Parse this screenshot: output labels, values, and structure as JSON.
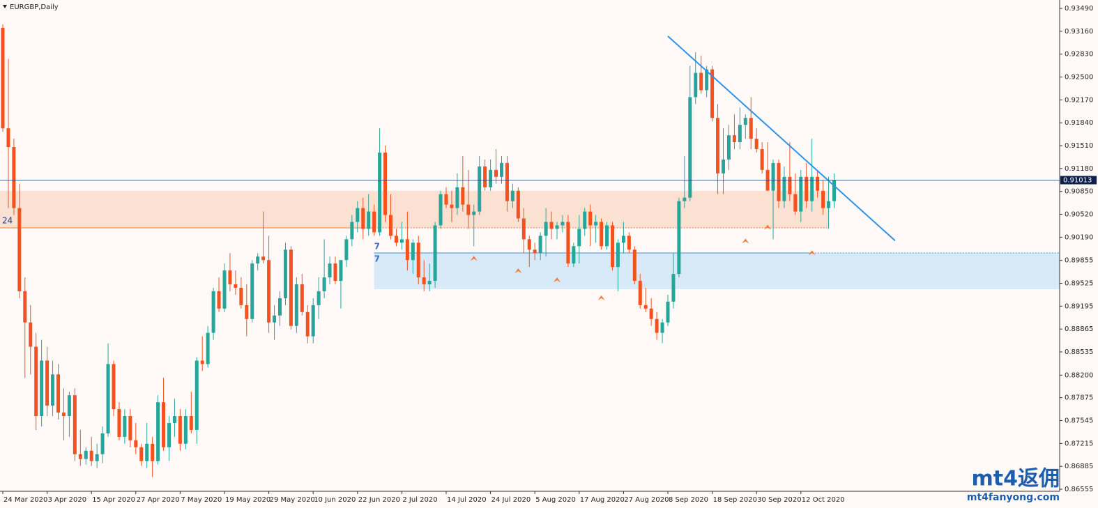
{
  "chart_data": {
    "type": "candlestick",
    "title": "EURGBP,Daily",
    "up_color": "#26a69a",
    "down_color": "#f4511e",
    "categories": [
      "24 Mar 2020",
      null,
      null,
      null,
      null,
      null,
      null,
      null,
      "3 Apr 2020",
      null,
      null,
      null,
      null,
      null,
      null,
      null,
      "15 Apr 2020",
      null,
      null,
      null,
      null,
      null,
      null,
      null,
      "27 Apr 2020",
      null,
      null,
      null,
      null,
      null,
      null,
      null,
      "7 May 2020",
      null,
      null,
      null,
      null,
      null,
      null,
      null,
      "19 May 2020",
      null,
      null,
      null,
      null,
      null,
      null,
      null,
      "29 May 2020",
      null,
      null,
      null,
      null,
      null,
      null,
      null,
      "10 Jun 2020",
      null,
      null,
      null,
      null,
      null,
      null,
      null,
      "22 Jun 2020",
      null,
      null,
      null,
      null,
      null,
      null,
      null,
      "2 Jul 2020",
      null,
      null,
      null,
      null,
      null,
      null,
      null,
      "14 Jul 2020",
      null,
      null,
      null,
      null,
      null,
      null,
      null,
      "24 Jul 2020",
      null,
      null,
      null,
      null,
      null,
      null,
      null,
      "5 Aug 2020",
      null,
      null,
      null,
      null,
      null,
      null,
      null,
      "17 Aug 2020",
      null,
      null,
      null,
      null,
      null,
      null,
      null,
      "27 Aug 2020",
      null,
      null,
      null,
      null,
      null,
      null,
      null,
      "8 Sep 2020",
      null,
      null,
      null,
      null,
      null,
      null,
      null,
      "18 Sep 2020",
      null,
      null,
      null,
      null,
      null,
      null,
      null,
      "30 Sep 2020",
      null,
      null,
      null,
      null,
      null,
      null,
      null,
      "12 Oct 2020",
      null,
      null,
      null,
      null,
      null,
      null
    ],
    "open": [
      0.9321,
      0.9176,
      0.9149,
      0.9061,
      0.8941,
      0.8896,
      0.8861,
      0.8761,
      0.8841,
      0.8776,
      0.8821,
      0.8766,
      0.8761,
      0.8791,
      0.8706,
      0.8699,
      0.8711,
      0.8696,
      0.8706,
      0.8736,
      0.8836,
      0.8771,
      0.8731,
      0.8761,
      0.8726,
      0.8716,
      0.8696,
      0.8721,
      0.8696,
      0.8781,
      0.8716,
      0.8751,
      0.8761,
      0.8721,
      0.8761,
      0.8741,
      0.8841,
      0.8836,
      0.8881,
      0.8941,
      0.8916,
      0.8971,
      0.8951,
      0.8946,
      0.8921,
      0.8901,
      0.8981,
      0.8991,
      0.8986,
      0.8896,
      0.8906,
      0.8931,
      0.9001,
      0.8891,
      0.8951,
      0.8911,
      0.8876,
      0.8921,
      0.8941,
      0.8961,
      0.8981,
      0.8956,
      0.8986,
      0.9016,
      0.9041,
      0.9061,
      0.9031,
      0.9056,
      0.9026,
      0.9141,
      0.9051,
      0.9021,
      0.9011,
      0.9016,
      0.8986,
      0.9011,
      0.8961,
      0.8951,
      0.8956,
      0.9036,
      0.9081,
      0.9066,
      0.9061,
      0.9091,
      0.9066,
      0.9051,
      0.9056,
      0.9121,
      0.9091,
      0.9116,
      0.9106,
      0.9126,
      0.9071,
      0.9086,
      0.9046,
      0.9016,
      0.9001,
      0.8996,
      0.9021,
      0.9041,
      0.9031,
      0.9036,
      0.9041,
      0.8981,
      0.9006,
      0.9031,
      0.9056,
      0.9036,
      0.9041,
      0.9006,
      0.9036,
      0.8976,
      0.9011,
      0.9021,
      0.9001,
      0.8956,
      0.8921,
      0.8916,
      0.8901,
      0.8881,
      0.8896,
      0.8926,
      0.8966,
      0.9071,
      0.9076,
      0.9221,
      0.9256,
      0.9231,
      0.9261,
      0.9191,
      0.9111,
      0.9131,
      0.9166,
      0.9156,
      0.9181,
      0.9191,
      0.9161,
      0.9146,
      0.9116,
      0.9086,
      0.9126,
      0.9071,
      0.9106,
      0.9081,
      0.9056,
      0.9106,
      0.9071,
      0.9106,
      0.9086,
      0.9061,
      0.9071
    ],
    "high": [
      0.9326,
      0.9276,
      0.9161,
      0.9096,
      0.8961,
      0.8921,
      0.8881,
      0.8871,
      0.8861,
      0.8841,
      0.8836,
      0.8801,
      0.8796,
      0.8801,
      0.8741,
      0.8716,
      0.8731,
      0.8721,
      0.8746,
      0.8866,
      0.8841,
      0.8781,
      0.8771,
      0.8771,
      0.8751,
      0.8721,
      0.8751,
      0.8731,
      0.8791,
      0.8816,
      0.8761,
      0.8786,
      0.8771,
      0.8771,
      0.8796,
      0.8846,
      0.8876,
      0.8891,
      0.8946,
      0.8961,
      0.8981,
      0.8996,
      0.8971,
      0.8961,
      0.8951,
      0.8986,
      0.8996,
      0.9056,
      0.9021,
      0.8921,
      0.8941,
      0.9011,
      0.9006,
      0.8961,
      0.8966,
      0.8921,
      0.8931,
      0.8961,
      0.9016,
      0.8991,
      0.8991,
      0.8986,
      0.9021,
      0.9051,
      0.9071,
      0.9076,
      0.9081,
      0.9066,
      0.9176,
      0.9151,
      0.9081,
      0.9031,
      0.9041,
      0.9056,
      0.9016,
      0.9021,
      0.8986,
      0.8981,
      0.9041,
      0.9086,
      0.9091,
      0.9086,
      0.9111,
      0.9136,
      0.9116,
      0.9066,
      0.9136,
      0.9131,
      0.9131,
      0.9146,
      0.9136,
      0.9136,
      0.9096,
      0.9091,
      0.9061,
      0.9021,
      0.9011,
      0.9026,
      0.9061,
      0.9056,
      0.9041,
      0.9051,
      0.9051,
      0.9011,
      0.9051,
      0.9061,
      0.9066,
      0.9051,
      0.9046,
      0.9041,
      0.9041,
      0.9016,
      0.9041,
      0.9026,
      0.9006,
      0.8966,
      0.8946,
      0.8931,
      0.8911,
      0.8901,
      0.8936,
      0.8996,
      0.9076,
      0.9136,
      0.9266,
      0.9286,
      0.9281,
      0.9266,
      0.9266,
      0.9211,
      0.9176,
      0.9181,
      0.9196,
      0.9206,
      0.9196,
      0.9221,
      0.9176,
      0.9156,
      0.9156,
      0.9131,
      0.9131,
      0.9121,
      0.9156,
      0.9111,
      0.9116,
      0.9126,
      0.9161,
      0.9116,
      0.9101,
      0.9106,
      0.9111
    ],
    "low": [
      0.9171,
      0.9061,
      0.9051,
      0.8931,
      0.8816,
      0.8821,
      0.8741,
      0.8746,
      0.8761,
      0.8761,
      0.8756,
      0.8726,
      0.8731,
      0.8696,
      0.8689,
      0.8691,
      0.8689,
      0.8686,
      0.8693,
      0.8731,
      0.8761,
      0.8726,
      0.8721,
      0.8716,
      0.8706,
      0.8689,
      0.8686,
      0.8673,
      0.8691,
      0.8711,
      0.8696,
      0.8731,
      0.8711,
      0.8713,
      0.8736,
      0.8721,
      0.8826,
      0.8831,
      0.8871,
      0.8911,
      0.8911,
      0.8941,
      0.8936,
      0.8916,
      0.8876,
      0.8896,
      0.8971,
      0.8981,
      0.8881,
      0.8871,
      0.8891,
      0.8921,
      0.8886,
      0.8881,
      0.8906,
      0.8866,
      0.8866,
      0.8901,
      0.8931,
      0.8951,
      0.8951,
      0.8916,
      0.8976,
      0.9006,
      0.9026,
      0.9016,
      0.9021,
      0.9021,
      0.9021,
      0.9041,
      0.9016,
      0.9006,
      0.9001,
      0.8971,
      0.8966,
      0.8951,
      0.8941,
      0.8941,
      0.8946,
      0.9031,
      0.9061,
      0.9041,
      0.9051,
      0.9056,
      0.9031,
      0.9006,
      0.9051,
      0.9086,
      0.9086,
      0.9096,
      0.9096,
      0.9056,
      0.9061,
      0.9041,
      0.8996,
      0.8976,
      0.8986,
      0.8986,
      0.8991,
      0.9016,
      0.9016,
      0.9026,
      0.8976,
      0.8976,
      0.8981,
      0.9021,
      0.9006,
      0.9011,
      0.9001,
      0.9001,
      0.8971,
      0.8941,
      0.8996,
      0.8996,
      0.8951,
      0.8916,
      0.8911,
      0.8891,
      0.8871,
      0.8866,
      0.8891,
      0.8916,
      0.8961,
      0.9061,
      0.9071,
      0.9211,
      0.9226,
      0.9221,
      0.9186,
      0.9081,
      0.9081,
      0.9116,
      0.9146,
      0.9146,
      0.9161,
      0.9146,
      0.9141,
      0.9111,
      0.9086,
      0.9016,
      0.9061,
      0.9061,
      0.9071,
      0.9051,
      0.9041,
      0.9061,
      0.9056,
      0.9076,
      0.9051,
      0.9031,
      0.9061
    ],
    "close": [
      0.9176,
      0.9149,
      0.9061,
      0.8941,
      0.8896,
      0.8861,
      0.8761,
      0.8841,
      0.8776,
      0.8821,
      0.8766,
      0.8761,
      0.8791,
      0.8706,
      0.8699,
      0.8711,
      0.8696,
      0.8706,
      0.8736,
      0.8836,
      0.8771,
      0.8731,
      0.8761,
      0.8726,
      0.8716,
      0.8696,
      0.8721,
      0.8696,
      0.8781,
      0.8716,
      0.8751,
      0.8761,
      0.8721,
      0.8761,
      0.8741,
      0.8841,
      0.8836,
      0.8881,
      0.8941,
      0.8916,
      0.8971,
      0.8951,
      0.8946,
      0.8921,
      0.8901,
      0.8981,
      0.8991,
      0.8986,
      0.8896,
      0.8906,
      0.8931,
      0.9001,
      0.8891,
      0.8951,
      0.8911,
      0.8876,
      0.8921,
      0.8941,
      0.8961,
      0.8981,
      0.8956,
      0.8986,
      0.9016,
      0.9041,
      0.9061,
      0.9031,
      0.9056,
      0.9026,
      0.9141,
      0.9051,
      0.9021,
      0.9011,
      0.9016,
      0.8986,
      0.9011,
      0.8961,
      0.8951,
      0.8956,
      0.9036,
      0.9081,
      0.9066,
      0.9061,
      0.9091,
      0.9066,
      0.9051,
      0.9056,
      0.9121,
      0.9091,
      0.9116,
      0.9106,
      0.9126,
      0.9071,
      0.9086,
      0.9046,
      0.9016,
      0.9001,
      0.8996,
      0.9021,
      0.9041,
      0.9031,
      0.9036,
      0.9041,
      0.8981,
      0.9006,
      0.9031,
      0.9056,
      0.9036,
      0.9041,
      0.9006,
      0.9036,
      0.8976,
      0.9011,
      0.9021,
      0.9001,
      0.8956,
      0.8921,
      0.8916,
      0.8901,
      0.8881,
      0.8896,
      0.8926,
      0.8966,
      0.9071,
      0.9076,
      0.9221,
      0.9256,
      0.9231,
      0.9261,
      0.9191,
      0.9111,
      0.9131,
      0.9166,
      0.9156,
      0.9181,
      0.9191,
      0.9161,
      0.9146,
      0.9116,
      0.9086,
      0.9126,
      0.9071,
      0.9106,
      0.9081,
      0.9056,
      0.9106,
      0.9071,
      0.9106,
      0.9086,
      0.9061,
      0.9071,
      0.9101
    ],
    "ylim": [
      0.86525,
      0.93611
    ],
    "yticks": [
      0.86555,
      0.86885,
      0.87215,
      0.87545,
      0.87875,
      {
        "value": 0.882,
        "label": "0.88200"
      },
      0.88535,
      0.88865,
      0.89195,
      0.89525,
      0.89855,
      {
        "value": 0.9019,
        "label": "0.90190"
      },
      {
        "value": 0.9052,
        "label": "0.90520"
      },
      {
        "value": 0.9085,
        "label": "0.90850"
      },
      {
        "value": 0.9118,
        "label": "0.91180"
      },
      {
        "value": 0.9151,
        "label": "0.91510"
      },
      {
        "value": 0.9184,
        "label": "0.91840"
      },
      {
        "value": 0.9217,
        "label": "0.92170"
      },
      {
        "value": 0.925,
        "label": "0.92500"
      },
      {
        "value": 0.9283,
        "label": "0.92830"
      },
      {
        "value": 0.9316,
        "label": "0.93160"
      },
      {
        "value": 0.9349,
        "label": "0.93490"
      }
    ],
    "current_price": 0.91013,
    "zones": [
      {
        "from": 0,
        "to": 149,
        "low": 0.90324,
        "high": 0.90857,
        "color": "#fbe1d2",
        "line_color": "#f4782e",
        "labels": [
          "24"
        ]
      },
      {
        "from": 67,
        "to": 200,
        "low": 0.8944,
        "high": 0.89963,
        "color": "#d8e9f8",
        "line_color": "#3c8fd6",
        "labels": [
          "7",
          "7"
        ]
      }
    ],
    "trendline": {
      "from": 120,
      "to": 161,
      "start": 0.9309,
      "end": 0.9014,
      "color": "#2e90e8"
    },
    "markers": [
      {
        "index": 85,
        "price": 0.8992
      },
      {
        "index": 93,
        "price": 0.8974
      },
      {
        "index": 100,
        "price": 0.8961
      },
      {
        "index": 108,
        "price": 0.8935
      },
      {
        "index": 134,
        "price": 0.9017
      },
      {
        "index": 138,
        "price": 0.9037
      },
      {
        "index": 146,
        "price": 0.9
      }
    ],
    "watermark": {
      "brand": "mt4返佣",
      "site": "mt4fanyong.com"
    }
  }
}
